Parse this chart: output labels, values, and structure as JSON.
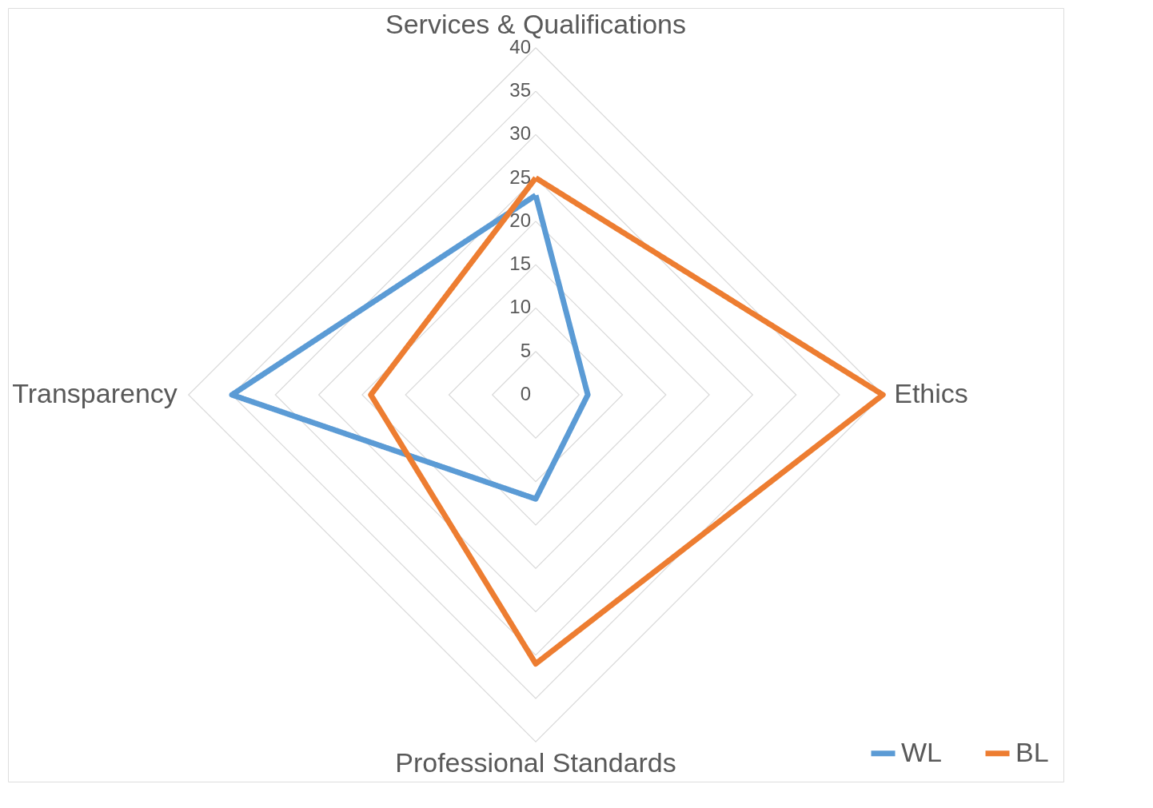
{
  "chart_data": {
    "type": "radar",
    "categories": [
      "Services & Qualifications",
      "Ethics",
      "Professional Standards",
      "Transparency"
    ],
    "series": [
      {
        "name": "WL",
        "color": "#5b9bd5",
        "values": [
          23,
          6,
          12,
          35
        ]
      },
      {
        "name": "BL",
        "color": "#ed7d31",
        "values": [
          25,
          40,
          31,
          19
        ]
      }
    ],
    "ylim": [
      0,
      40
    ],
    "yticks": [
      0,
      5,
      10,
      15,
      20,
      25,
      30,
      35,
      40
    ],
    "grid": true,
    "legend": "bottom right",
    "line_style": "solid",
    "marker": "none"
  }
}
